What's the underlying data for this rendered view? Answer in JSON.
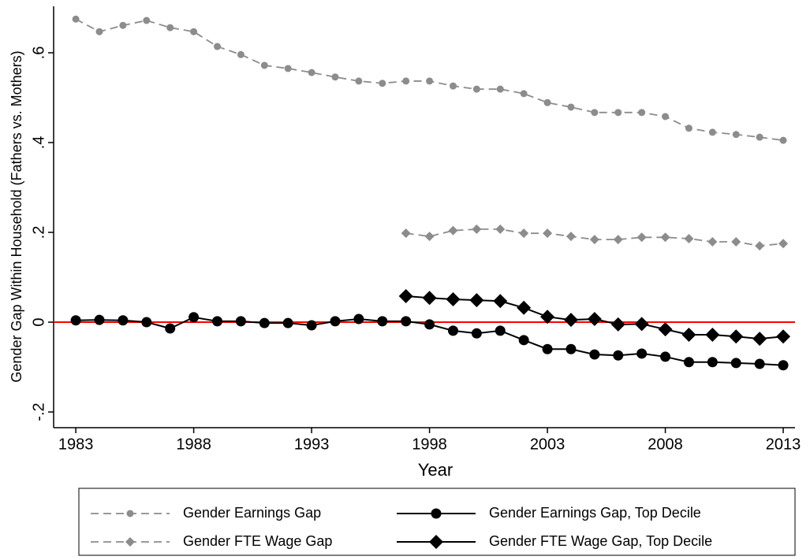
{
  "chart_data": {
    "type": "line",
    "x_label": "Year",
    "y_label": "Gender Gap Within Household (Fathers vs. Mothers)",
    "x": [
      1983,
      1984,
      1985,
      1986,
      1987,
      1988,
      1989,
      1990,
      1991,
      1992,
      1993,
      1994,
      1995,
      1996,
      1997,
      1998,
      1999,
      2000,
      2001,
      2002,
      2003,
      2004,
      2005,
      2006,
      2007,
      2008,
      2009,
      2010,
      2011,
      2012,
      2013
    ],
    "xlim": [
      1982.06,
      2013.5
    ],
    "xticks": [
      1983,
      1988,
      1993,
      1998,
      2003,
      2008,
      2013
    ],
    "ylim": [
      -0.235,
      0.7035
    ],
    "yticks": [
      {
        "value": -0.2,
        "label": "-.2"
      },
      0,
      {
        "value": 0.2,
        "label": ".2"
      },
      {
        "value": 0.4,
        "label": ".4"
      },
      {
        "value": 0.6,
        "label": ".6"
      }
    ],
    "reference_line": {
      "value": 0,
      "color": "#ff0000"
    },
    "series": [
      {
        "name": "Gender Earnings Gap",
        "color": "#8c8c8c",
        "marker": "circle",
        "dashed": true,
        "values": [
          0.675,
          0.647,
          0.661,
          0.672,
          0.656,
          0.647,
          0.614,
          0.596,
          0.572,
          0.565,
          0.556,
          0.546,
          0.537,
          0.532,
          0.537,
          0.537,
          0.526,
          0.519,
          0.519,
          0.509,
          0.489,
          0.479,
          0.467,
          0.467,
          0.467,
          0.458,
          0.432,
          0.423,
          0.418,
          0.412,
          0.405
        ]
      },
      {
        "name": "Gender FTE Wage Gap",
        "color": "#8c8c8c",
        "marker": "diamond",
        "dashed": true,
        "values": [
          null,
          null,
          null,
          null,
          null,
          null,
          null,
          null,
          null,
          null,
          null,
          null,
          null,
          null,
          0.198,
          0.191,
          0.204,
          0.207,
          0.207,
          0.198,
          0.198,
          0.191,
          0.184,
          0.184,
          0.189,
          0.189,
          0.186,
          0.179,
          0.179,
          0.17,
          0.175
        ]
      },
      {
        "name": "Gender Earnings Gap, Top Decile",
        "color": "#000000",
        "marker": "circle",
        "dashed": false,
        "values": [
          0.004,
          0.005,
          0.004,
          0,
          -0.014,
          0.011,
          0.002,
          0.002,
          -0.002,
          -0.002,
          -0.007,
          0.002,
          0.007,
          0.002,
          0.002,
          -0.005,
          -0.019,
          -0.025,
          -0.019,
          -0.04,
          -0.06,
          -0.06,
          -0.072,
          -0.074,
          -0.07,
          -0.077,
          -0.089,
          -0.089,
          -0.091,
          -0.093,
          -0.096
        ]
      },
      {
        "name": "Gender FTE Wage Gap, Top Decile",
        "color": "#000000",
        "marker": "diamond",
        "dashed": false,
        "values": [
          null,
          null,
          null,
          null,
          null,
          null,
          null,
          null,
          null,
          null,
          null,
          null,
          null,
          null,
          0.058,
          0.054,
          0.051,
          0.049,
          0.047,
          0.032,
          0.012,
          0.005,
          0.007,
          -0.005,
          -0.004,
          -0.016,
          -0.028,
          -0.028,
          -0.032,
          -0.037,
          -0.032
        ]
      }
    ]
  }
}
